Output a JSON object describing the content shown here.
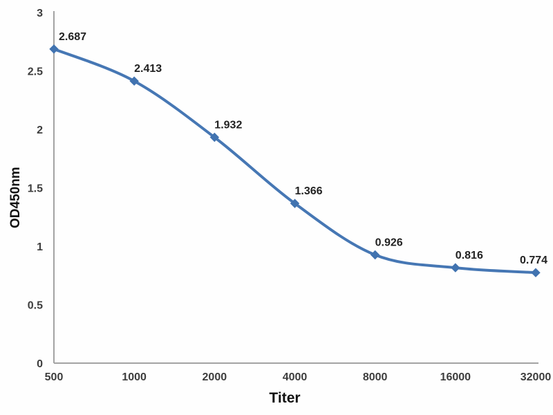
{
  "chart_data": {
    "type": "line",
    "title": "",
    "xlabel": "Titer",
    "ylabel": "OD450nm",
    "categories": [
      "500",
      "1000",
      "2000",
      "4000",
      "8000",
      "16000",
      "32000"
    ],
    "series": [
      {
        "name": "OD450nm",
        "values": [
          2.687,
          2.413,
          1.932,
          1.366,
          0.926,
          0.816,
          0.774
        ],
        "point_labels": [
          "2.687",
          "2.413",
          "1.932",
          "1.366",
          "0.926",
          "0.816",
          "0.774"
        ]
      }
    ],
    "ylim": [
      0,
      3
    ],
    "ytick_labels": [
      "0",
      "0.5",
      "1",
      "1.5",
      "2",
      "2.5",
      "3"
    ],
    "yticks": [
      0,
      0.5,
      1,
      1.5,
      2,
      2.5,
      3
    ],
    "x_scale": "categorical (doubling dilution)",
    "grid": false,
    "legend": false,
    "line_color": "#4677b4",
    "marker": "diamond",
    "marker_color": "#4173b0",
    "axis_color": "#a3a3a3",
    "tick_text_color": "#3d3d3d",
    "point_label_color": "#222222"
  }
}
